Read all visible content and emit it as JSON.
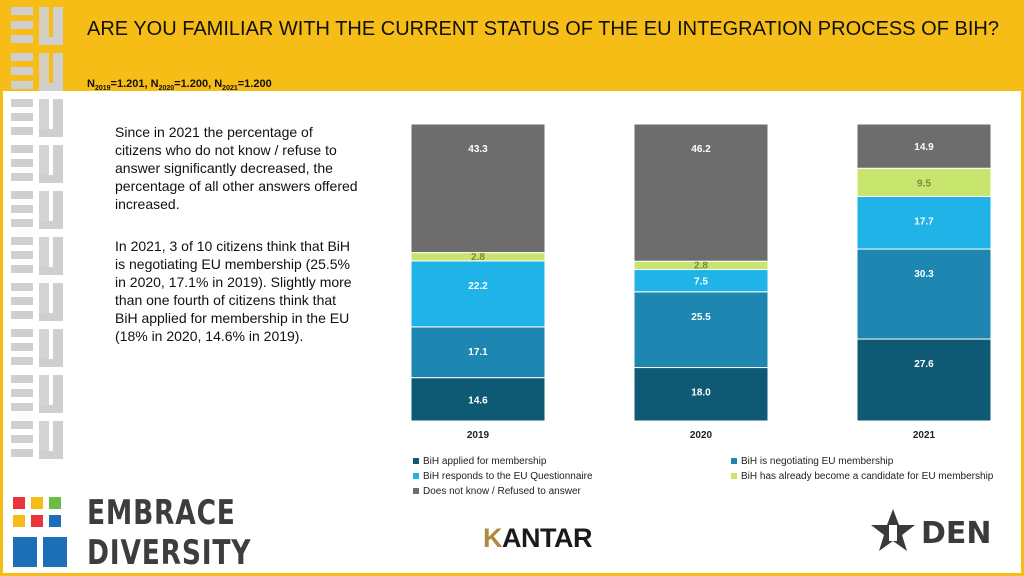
{
  "header": {
    "title": "ARE YOU FAMILIAR WITH THE CURRENT STATUS OF THE EU INTEGRATION PROCESS OF BIH?",
    "sample": [
      {
        "prefix": "N",
        "year": "2019",
        "value": "=1.201"
      },
      {
        "prefix": "N",
        "year": "2020",
        "value": "=1.200"
      },
      {
        "prefix": "N",
        "year": "2021",
        "value": "=1.200"
      }
    ],
    "sample_sep": ", "
  },
  "text": {
    "para1": "Since in 2021 the percentage of citizens who do not know / refuse to answer significantly decreased, the percentage of all other answers offered increased.",
    "para2": "In 2021, 3 of 10 citizens think that BiH is negotiating EU membership (25.5% in 2020, 17.1% in 2019). Slightly more than one fourth of citizens think that BiH applied for membership in the EU (18% in 2020, 14.6% in 2019)."
  },
  "chart_data": {
    "type": "bar",
    "stacked": true,
    "normalized": true,
    "categories": [
      "2019",
      "2020",
      "2021"
    ],
    "series": [
      {
        "name": "BiH applied for membership",
        "color": "#0e5a75",
        "values": [
          14.6,
          18.0,
          27.6
        ]
      },
      {
        "name": "BiH is negotiating EU membership",
        "color": "#1d87b1",
        "values": [
          17.1,
          25.5,
          30.3
        ]
      },
      {
        "name": "BiH responds to the EU Questionnaire",
        "color": "#1fb3e8",
        "values": [
          22.2,
          7.5,
          17.7
        ]
      },
      {
        "name": "BiH has already become a candidate for EU membership",
        "color": "#c8e56d",
        "values": [
          2.8,
          2.8,
          9.5
        ]
      },
      {
        "name": "Does not know / Refused to answer",
        "color": "#6d6d6d",
        "values": [
          43.3,
          46.2,
          14.9
        ]
      }
    ],
    "value_labels": [
      [
        "14.6",
        "18.0",
        "27.6"
      ],
      [
        "17.1",
        "25.5",
        "30.3"
      ],
      [
        "22.2",
        "7.5",
        "17.7"
      ],
      [
        "2.8",
        "2.8",
        "9.5"
      ],
      [
        "43.3",
        "46.2",
        "14.9"
      ]
    ],
    "legend_position": "bottom"
  },
  "logos": {
    "left_line1": "EMBRACE",
    "left_line2": "DIVERSITY",
    "kantar_k": "K",
    "kantar_rest": "ANTAR",
    "right_text": "DEN"
  },
  "colors": {
    "accent": "#f6bd16",
    "sidebar": "#cfcfcf",
    "logo_red": "#e8343a",
    "logo_yellow": "#f6bd16",
    "logo_green": "#6cbd45",
    "logo_blue": "#1d6fb8"
  }
}
